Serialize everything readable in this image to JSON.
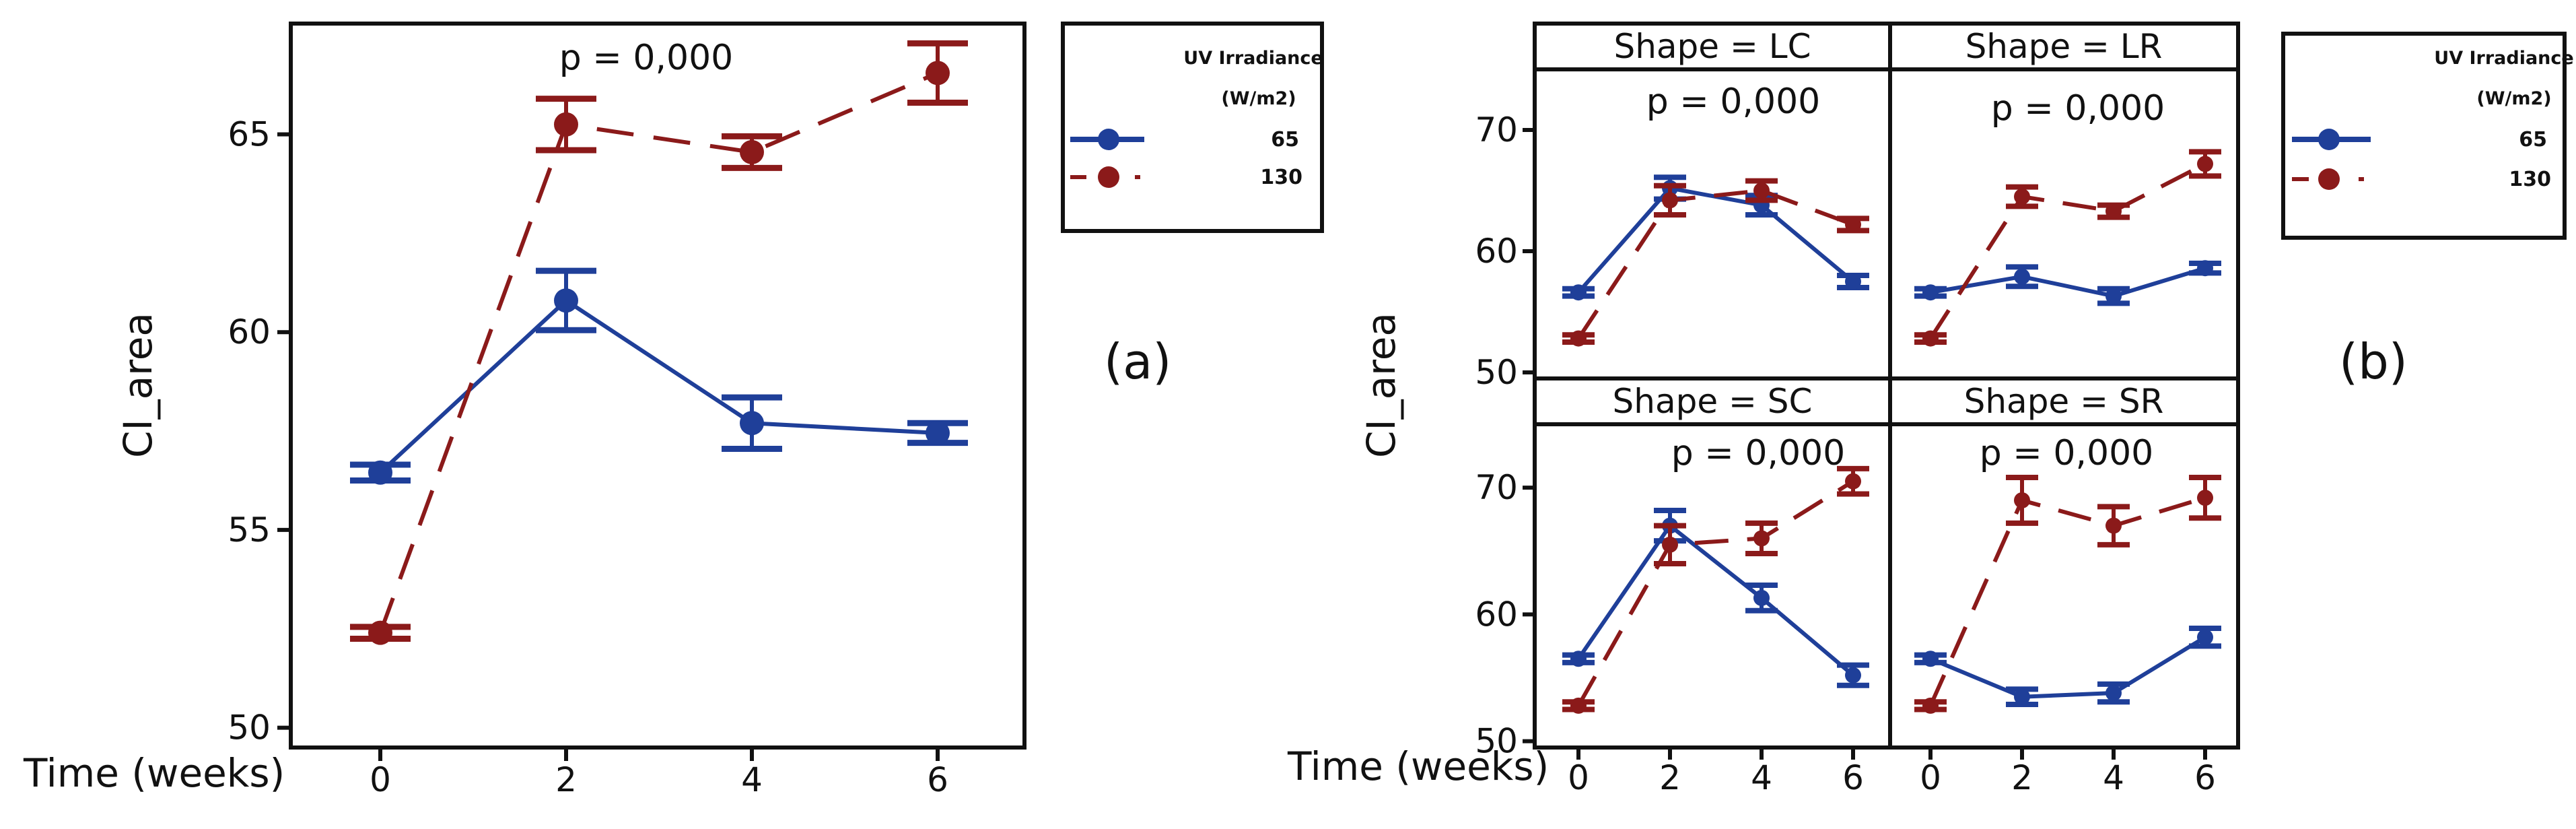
{
  "figure_labels": {
    "a": "(a)",
    "b": "(b)"
  },
  "colors": {
    "s65": "#1f3f99",
    "s130": "#8b1a1a",
    "axis": "#111111"
  },
  "chart_data": [
    {
      "id": "a",
      "type": "line",
      "ylabel": "CI_area",
      "xlabel": "Time (weeks)",
      "x": [
        0,
        2,
        4,
        6
      ],
      "xticks": [
        "0",
        "2",
        "4",
        "6"
      ],
      "yticks": [
        "50",
        "55",
        "60",
        "65"
      ],
      "ylim": [
        49.5,
        67.8
      ],
      "annotation": "p = 0,000",
      "legend": {
        "title_line1": "UV Irradiance",
        "title_line2": "(W/m2)",
        "labels": [
          "65",
          "130"
        ]
      },
      "series": [
        {
          "name": "65",
          "values": [
            56.45,
            60.8,
            57.7,
            57.45
          ],
          "err": [
            0.2,
            0.75,
            0.65,
            0.25
          ]
        },
        {
          "name": "130",
          "values": [
            52.4,
            65.25,
            64.55,
            66.55
          ],
          "err": [
            0.15,
            0.65,
            0.4,
            0.75
          ]
        }
      ]
    },
    {
      "id": "b",
      "type": "line",
      "ylabel": "CI_area",
      "xlabel": "Time (weeks)",
      "x": [
        0,
        2,
        4,
        6
      ],
      "xticks": [
        "0",
        "2",
        "4",
        "6"
      ],
      "yticks": [
        "50",
        "60",
        "70"
      ],
      "ylim": [
        49.5,
        75
      ],
      "legend": {
        "title_line1": "UV Irradiance",
        "title_line2": "(W/m2)",
        "labels": [
          "65",
          "130"
        ]
      },
      "panels": [
        {
          "label": "Shape = LC",
          "annotation": "p = 0,000",
          "series": [
            {
              "name": "65",
              "values": [
                56.6,
                65.2,
                63.8,
                57.5
              ],
              "err": [
                0.3,
                0.9,
                0.8,
                0.5
              ]
            },
            {
              "name": "130",
              "values": [
                52.8,
                64.2,
                65.0,
                62.2
              ],
              "err": [
                0.3,
                1.2,
                0.8,
                0.5
              ]
            }
          ]
        },
        {
          "label": "Shape = LR",
          "annotation": "p = 0,000",
          "series": [
            {
              "name": "65",
              "values": [
                56.6,
                57.9,
                56.3,
                58.6
              ],
              "err": [
                0.3,
                0.8,
                0.6,
                0.4
              ]
            },
            {
              "name": "130",
              "values": [
                52.8,
                64.5,
                63.3,
                67.2
              ],
              "err": [
                0.3,
                0.8,
                0.5,
                1.0
              ]
            }
          ]
        },
        {
          "label": "Shape = SC",
          "annotation": "p = 0,000",
          "series": [
            {
              "name": "65",
              "values": [
                56.5,
                67.0,
                61.3,
                55.2
              ],
              "err": [
                0.3,
                1.2,
                1.0,
                0.8
              ]
            },
            {
              "name": "130",
              "values": [
                52.8,
                65.5,
                66.0,
                70.5
              ],
              "err": [
                0.3,
                1.5,
                1.2,
                1.0
              ]
            }
          ]
        },
        {
          "label": "Shape = SR",
          "annotation": "p = 0,000",
          "series": [
            {
              "name": "65",
              "values": [
                56.5,
                53.5,
                53.8,
                58.2
              ],
              "err": [
                0.3,
                0.6,
                0.7,
                0.7
              ]
            },
            {
              "name": "130",
              "values": [
                52.8,
                69.0,
                67.0,
                69.2
              ],
              "err": [
                0.3,
                1.8,
                1.5,
                1.6
              ]
            }
          ]
        }
      ]
    }
  ]
}
